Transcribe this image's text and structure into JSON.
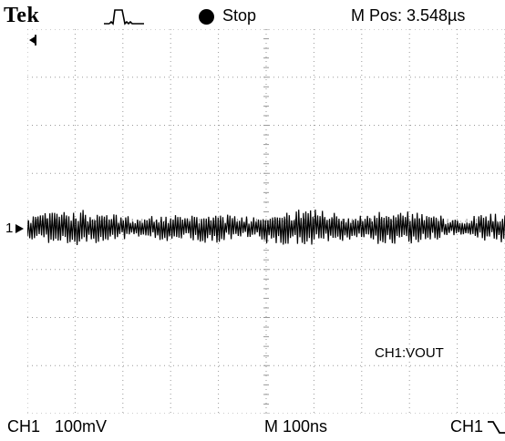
{
  "header": {
    "brand": "Tek",
    "acquisition_status": "Stop",
    "horizontal_position": "M Pos: 3.548µs"
  },
  "display": {
    "channel_marker": "1",
    "trace_label": "CH1:VOUT",
    "waveform": {
      "description_hidden": true,
      "points_per_division": 20
    }
  },
  "footer": {
    "channel": "CH1",
    "volts_per_div": "100mV",
    "time_per_div": "M 100ns",
    "trigger_source": "CH1"
  },
  "icons": {
    "trigger_pulse": "trigger-pulse-icon",
    "run_state": "stop-dot-icon",
    "trigger_position": "trigger-arrow-icon",
    "trigger_slope": "falling-edge-icon"
  },
  "colors": {
    "background": "#ffffff",
    "trace": "#000000",
    "grid": "#9a9a9a"
  }
}
